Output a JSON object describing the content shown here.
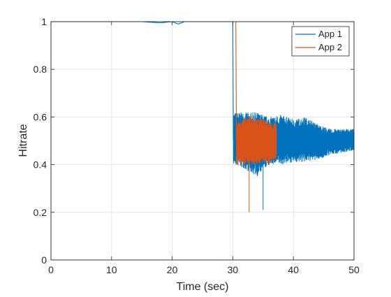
{
  "chart_data": {
    "type": "line",
    "title": "",
    "xlabel": "Time (sec)",
    "ylabel": "Hitrate",
    "xlim": [
      0,
      50
    ],
    "ylim": [
      0,
      1
    ],
    "xticks": [
      0,
      10,
      20,
      30,
      40,
      50
    ],
    "yticks": [
      0,
      0.2,
      0.4,
      0.6,
      0.8,
      1
    ],
    "xtick_labels": [
      "0",
      "10",
      "20",
      "30",
      "40",
      "50"
    ],
    "ytick_labels": [
      "0",
      "0.2",
      "0.4",
      "0.6",
      "0.8",
      "1"
    ],
    "grid": true,
    "legend_position": "top-right",
    "series": [
      {
        "name": "App 1",
        "color": "#0072BD",
        "x": [
          0,
          5,
          10,
          15,
          18,
          20,
          21,
          22,
          24,
          26,
          28,
          30,
          30.1,
          31,
          32,
          33,
          34,
          35,
          36,
          37,
          38,
          39,
          40,
          41,
          42,
          43,
          44,
          45,
          46,
          47,
          48,
          49,
          50
        ],
        "y": [
          1,
          1,
          1,
          1,
          0.995,
          1,
          0.99,
          1,
          1,
          1,
          1,
          1,
          0.5,
          0.6,
          0.42,
          0.58,
          0.38,
          0.55,
          0.44,
          0.57,
          0.43,
          0.55,
          0.44,
          0.56,
          0.45,
          0.55,
          0.46,
          0.53,
          0.47,
          0.52,
          0.48,
          0.52,
          0.5
        ],
        "envelope": {
          "x": [
            30.1,
            32,
            34,
            36,
            38,
            40,
            42,
            44,
            46,
            48,
            50
          ],
          "upper": [
            0.62,
            0.62,
            0.62,
            0.6,
            0.61,
            0.59,
            0.6,
            0.57,
            0.55,
            0.55,
            0.55
          ],
          "lower": [
            0.4,
            0.38,
            0.35,
            0.4,
            0.4,
            0.41,
            0.41,
            0.42,
            0.44,
            0.45,
            0.46
          ]
        },
        "spikes": [
          {
            "x": 35,
            "y": 0.21
          }
        ]
      },
      {
        "name": "App 2",
        "color": "#D95319",
        "x": [
          0,
          30.5,
          30.6,
          31,
          32,
          33,
          34,
          35,
          36,
          37,
          37.2
        ],
        "y": [
          null,
          1,
          0.5,
          0.58,
          0.4,
          0.6,
          0.42,
          0.58,
          0.4,
          0.57,
          0.5
        ],
        "envelope": {
          "x": [
            30.6,
            32,
            34,
            36,
            37.2
          ],
          "upper": [
            0.58,
            0.6,
            0.6,
            0.58,
            0.58
          ],
          "lower": [
            0.4,
            0.4,
            0.4,
            0.41,
            0.42
          ]
        },
        "spikes": [
          {
            "x": 32.7,
            "y": 0.2
          }
        ]
      }
    ]
  }
}
